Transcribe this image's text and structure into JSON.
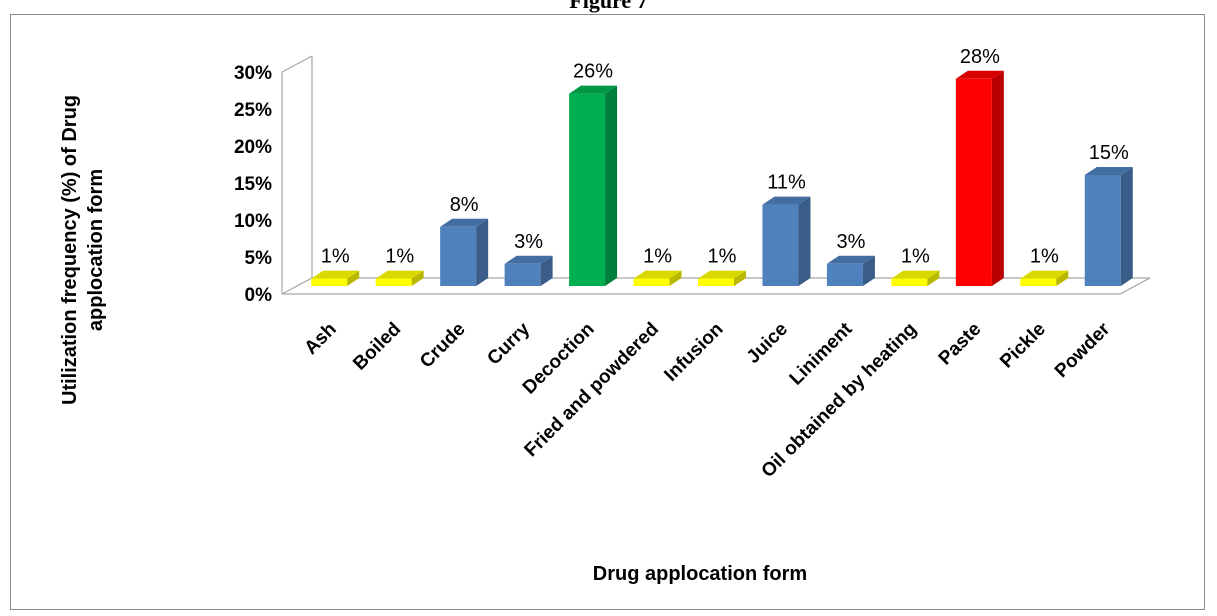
{
  "figure": {
    "title": "Figure 7"
  },
  "chart_data": {
    "type": "bar",
    "title": "",
    "xlabel": "Drug  applocation form",
    "ylabel_lines": [
      "Utilization frequency (%) of Drug",
      "applocation  form"
    ],
    "ylim": [
      0,
      30
    ],
    "yticks": [
      "0%",
      "5%",
      "10%",
      "15%",
      "20%",
      "25%",
      "30%"
    ],
    "categories": [
      "Ash",
      "Boiled",
      "Crude",
      "Curry",
      "Decoction",
      "Fried and powdered",
      "Infusion",
      "Juice",
      "Liniment",
      "Oil obtained by heating",
      "Paste",
      "Pickle",
      "Powder"
    ],
    "values": [
      1,
      1,
      8,
      3,
      26,
      1,
      1,
      11,
      3,
      1,
      28,
      1,
      15
    ],
    "data_labels": [
      "1%",
      "1%",
      "8%",
      "3%",
      "26%",
      "1%",
      "1%",
      "11%",
      "3%",
      "1%",
      "28%",
      "1%",
      "15%"
    ],
    "bar_colors": [
      "#ffff00",
      "#ffff00",
      "#4f81bd",
      "#4f81bd",
      "#00b050",
      "#ffff00",
      "#ffff00",
      "#4f81bd",
      "#4f81bd",
      "#ffff00",
      "#ff0000",
      "#ffff00",
      "#4f81bd"
    ],
    "style": "3d-column",
    "grid": false
  }
}
